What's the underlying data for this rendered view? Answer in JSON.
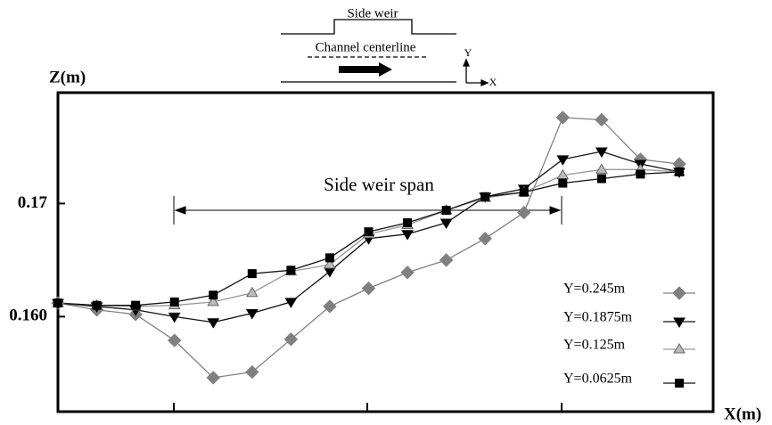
{
  "chart_data": {
    "type": "line",
    "annotations": {
      "top_label": "Side weir",
      "centerline_label": "Channel centerline",
      "axis_glyph_y": "Y",
      "axis_glyph_x": "X",
      "span_label": "Side weir span"
    },
    "y_label": "Z(m)",
    "x_label": "X(m)",
    "categories": [
      null,
      null,
      null,
      null,
      null,
      null,
      null,
      null,
      null,
      null,
      null,
      null,
      null,
      null,
      null,
      null,
      null
    ],
    "ylim": [
      0.1516,
      0.1798
    ],
    "yticks": [
      {
        "value": 0.16,
        "label": "0.160"
      },
      0.17
    ],
    "series": [
      {
        "name": "Y=0.245m",
        "color": "#808080",
        "line_color": "#808080",
        "marker": "diamond",
        "values": [
          0.1612,
          0.1606,
          0.1602,
          0.1579,
          0.1546,
          0.1551,
          0.158,
          0.1609,
          0.1625,
          0.1639,
          0.165,
          0.1669,
          0.1692,
          0.1776,
          0.1774,
          0.1739,
          0.1735
        ]
      },
      {
        "name": "Y=0.1875m",
        "color": "#000000",
        "line_color": "#111111",
        "marker": "triangle-down",
        "values": [
          0.1612,
          0.1609,
          0.1606,
          0.16,
          0.1595,
          0.1603,
          0.1613,
          0.164,
          0.1669,
          0.1673,
          0.1683,
          0.1706,
          0.1713,
          0.1739,
          0.1746,
          0.1735,
          0.1728
        ]
      },
      {
        "name": "Y=0.125m",
        "color": "#bbbbbb",
        "line_color": "#999999",
        "marker": "triangle-up",
        "values": [
          0.1612,
          0.161,
          0.1609,
          0.161,
          0.1613,
          0.1621,
          0.164,
          0.1646,
          0.1673,
          0.1681,
          0.1694,
          0.1705,
          0.171,
          0.1725,
          0.173,
          0.173,
          0.1728
        ]
      },
      {
        "name": "Y=0.0625m",
        "color": "#000000",
        "line_color": "#111111",
        "marker": "square",
        "values": [
          0.1612,
          0.161,
          0.161,
          0.1613,
          0.1619,
          0.1638,
          0.1641,
          0.1652,
          0.1675,
          0.1683,
          0.1694,
          0.1706,
          0.171,
          0.1718,
          0.1722,
          0.1726,
          0.1728
        ]
      }
    ]
  }
}
